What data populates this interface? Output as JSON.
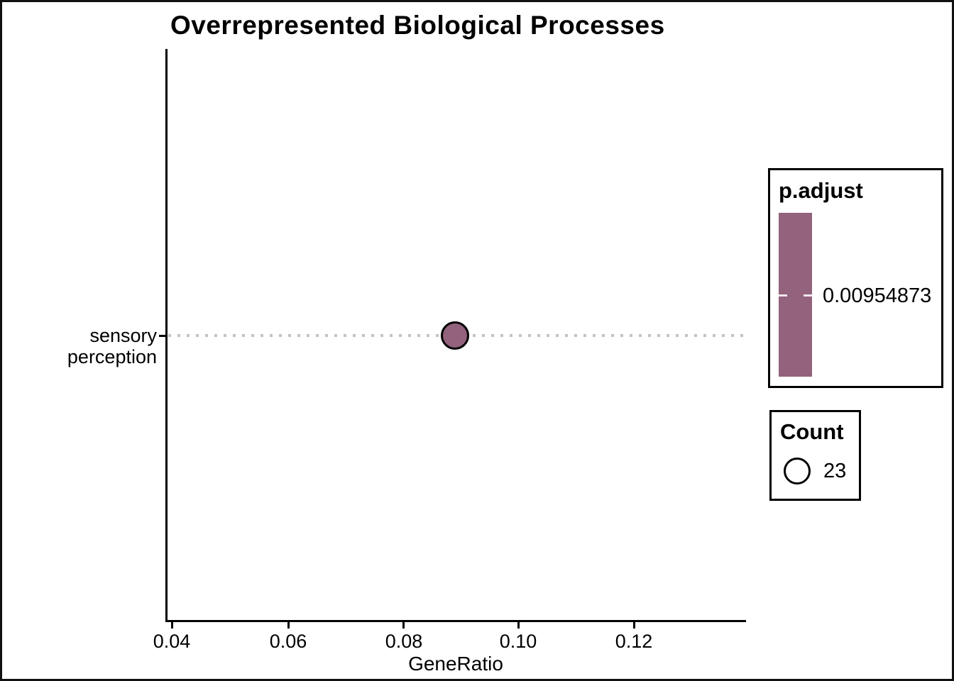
{
  "chart_data": {
    "type": "scatter",
    "title": "Overrepresented Biological Processes",
    "xlabel": "GeneRatio",
    "ylabel": "",
    "categories": [
      "sensory perception"
    ],
    "x_ticks": [
      0.04,
      0.06,
      0.08,
      0.1,
      0.12
    ],
    "x_tick_labels": [
      "0.04",
      "0.06",
      "0.08",
      "0.10",
      "0.12"
    ],
    "xlim": [
      0.0392,
      0.1392
    ],
    "points": [
      {
        "category": "sensory perception",
        "gene_ratio": 0.0891,
        "count": 23,
        "p_adjust": 0.00954873
      }
    ],
    "grid": "dotted horizontal guide line per category",
    "legend_position": "right",
    "colors": {
      "accent": "#93627D",
      "gridline": "#C3C3C3",
      "axis": "#000000",
      "background": "#FFFFFF"
    },
    "legend": {
      "p_adjust": {
        "title": "p.adjust",
        "value_label": "0.00954873",
        "bar_color": "#93627D"
      },
      "count": {
        "title": "Count",
        "value_label": "23"
      }
    }
  }
}
